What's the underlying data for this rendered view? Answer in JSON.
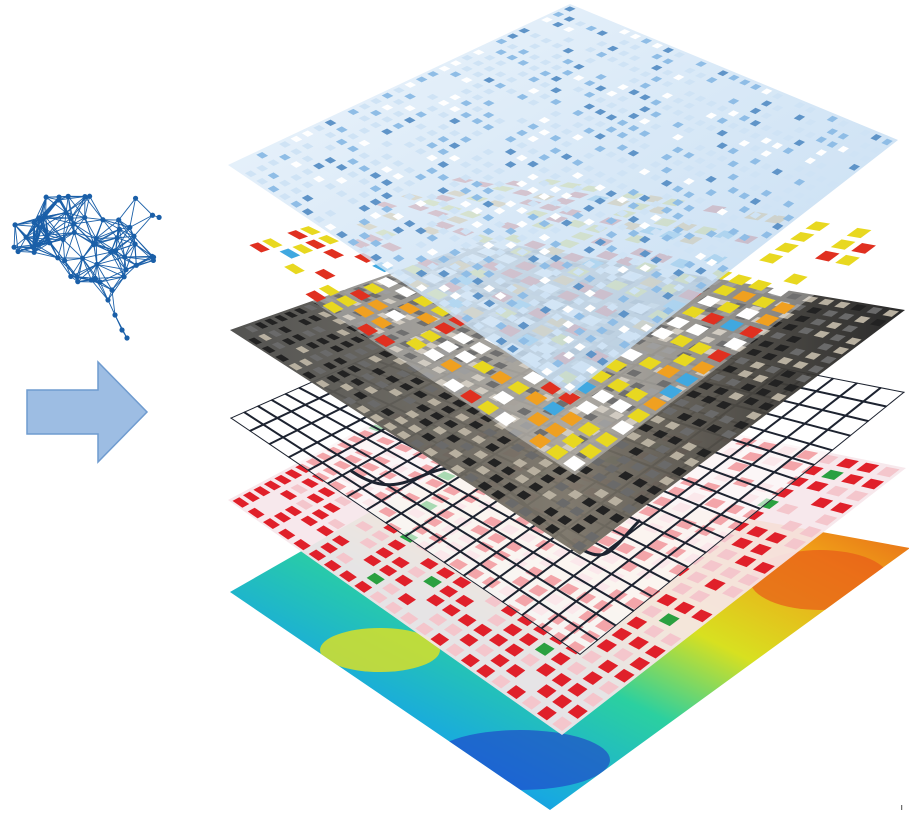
{
  "diagram": {
    "brain": {
      "icon": "neural-network-brain-icon",
      "node_color": "#1a5fa8",
      "edge_color": "#1a5fa8"
    },
    "arrow": {
      "icon": "right-arrow-icon",
      "fill": "#9dbde3",
      "stroke": "#6f9bcf"
    },
    "layers": [
      {
        "name": "elevation-terrain",
        "palette": [
          "#1a3fd0",
          "#18a9e0",
          "#2bd0a0",
          "#d8e020",
          "#f0a018",
          "#e0401a"
        ]
      },
      {
        "name": "building-footprints",
        "palette": [
          "#e0202a",
          "#f4c6cc",
          "#2aa040"
        ]
      },
      {
        "name": "street-network",
        "palette": [
          "#1d2330",
          "#ffffff"
        ]
      },
      {
        "name": "aerial-imagery",
        "palette": [
          "#222222",
          "#6a6a6a",
          "#b8b0a0"
        ]
      },
      {
        "name": "land-use-classification",
        "palette": [
          "#e8d820",
          "#f0a020",
          "#e03020",
          "#40a8e0",
          "#ffffff"
        ]
      },
      {
        "name": "3d-buildings",
        "palette": [
          "#cfe3f5",
          "#8fbde6",
          "#5f94c8",
          "#ffffff"
        ]
      }
    ],
    "corner_mark": "ı"
  }
}
